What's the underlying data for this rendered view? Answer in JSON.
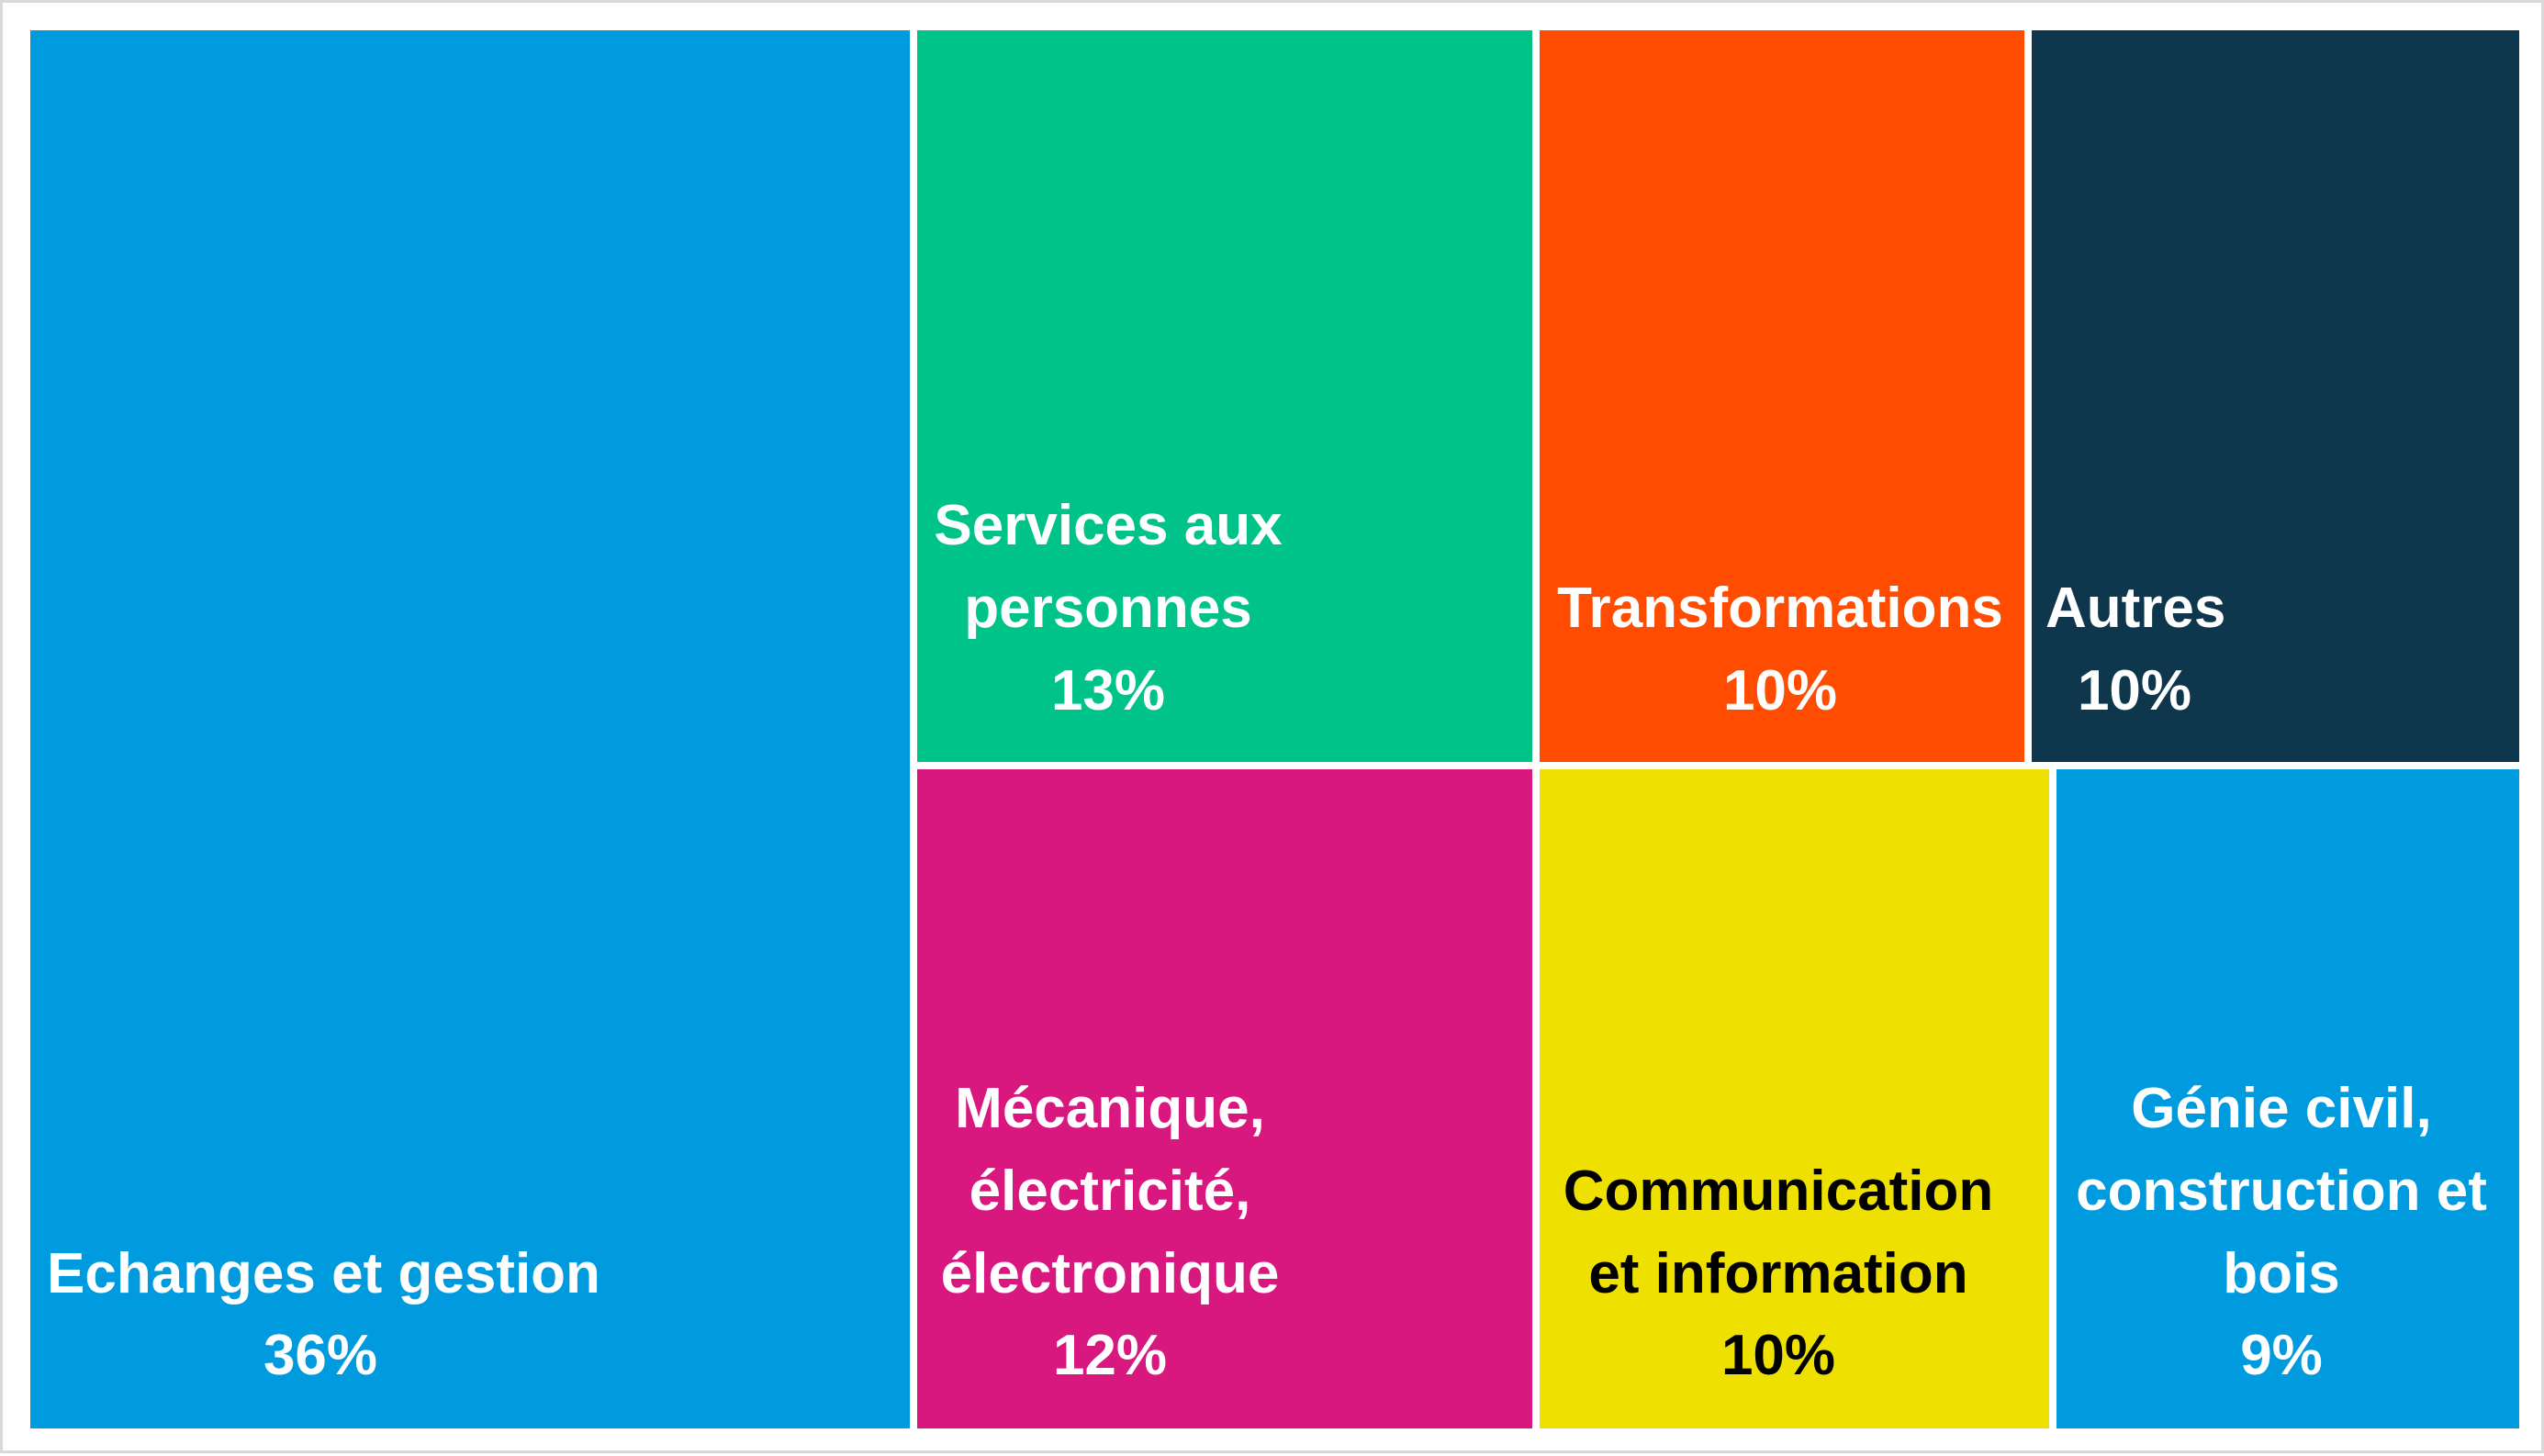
{
  "chart_data": {
    "type": "treemap",
    "title": "",
    "items": [
      {
        "name": "Echanges et gestion",
        "lines": [
          "Echanges et gestion"
        ],
        "value": 36,
        "label": "36%",
        "color": "#009ADE",
        "text_color": "#FFFFFF",
        "align": "left"
      },
      {
        "name": "Services aux personnes",
        "lines": [
          "Services aux",
          "personnes"
        ],
        "value": 13,
        "label": "13%",
        "color": "#00C389",
        "text_color": "#FFFFFF",
        "align": "left"
      },
      {
        "name": "Transformations",
        "lines": [
          "Transformations"
        ],
        "value": 10,
        "label": "10%",
        "color": "#FF4C00",
        "text_color": "#FFFFFF",
        "align": "left"
      },
      {
        "name": "Autres",
        "lines": [
          "Autres"
        ],
        "value": 10,
        "label": "10%",
        "color": "#0E374D",
        "text_color": "#FFFFFF",
        "align": "left"
      },
      {
        "name": "Mécanique, électricité, électronique",
        "lines": [
          "Mécanique,",
          "électricité,",
          "électronique"
        ],
        "value": 12,
        "label": "12%",
        "color": "#D9187F",
        "text_color": "#FFFFFF",
        "align": "left"
      },
      {
        "name": "Communication et information",
        "lines": [
          "Communication",
          "et information"
        ],
        "value": 10,
        "label": "10%",
        "color": "#EEE000",
        "text_color": "#000000",
        "align": "left"
      },
      {
        "name": "Génie civil, construction et bois",
        "lines": [
          "Génie civil,",
          "construction et",
          "bois"
        ],
        "value": 9,
        "label": "9%",
        "color": "#009ADE",
        "text_color": "#FFFFFF",
        "align": "center"
      }
    ]
  }
}
